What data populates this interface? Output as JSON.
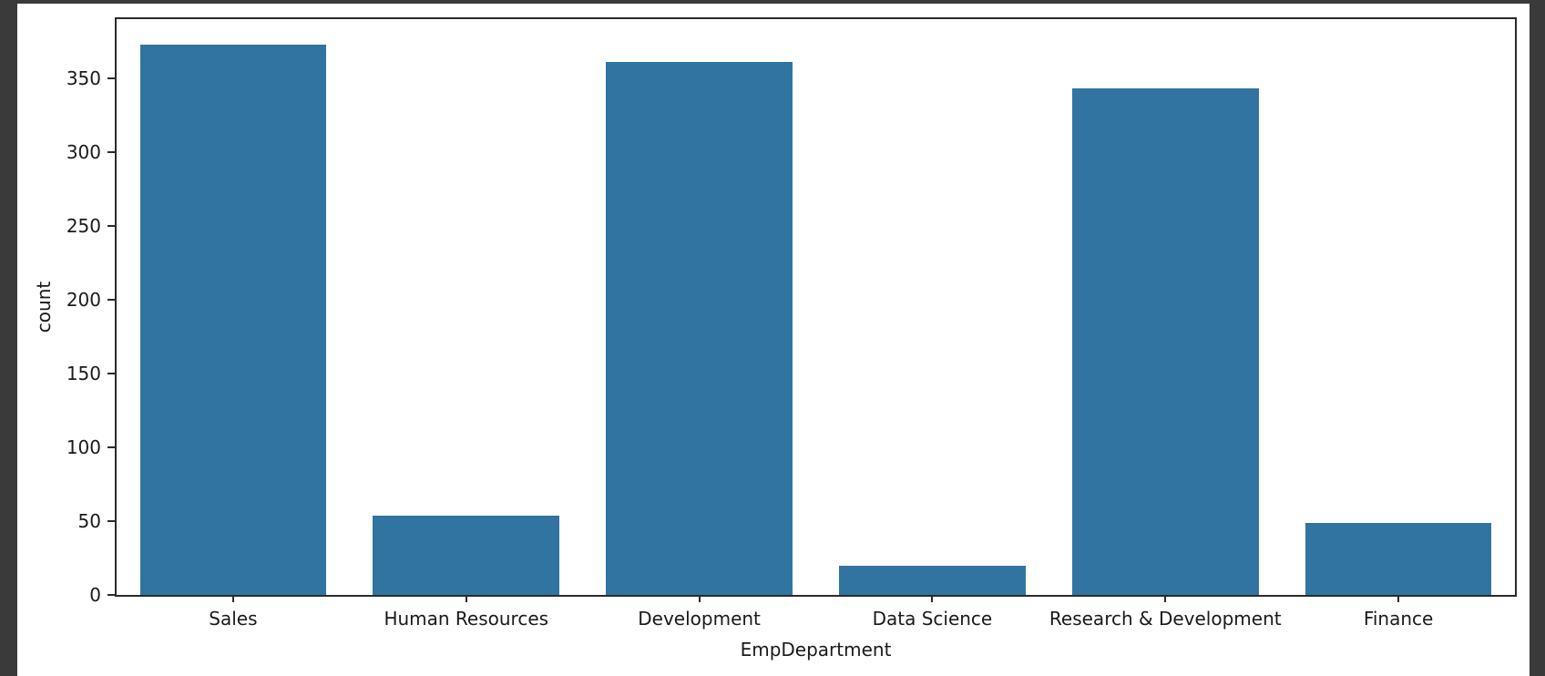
{
  "window": {
    "frame_color": "#3a3a3a",
    "canvas_background": "#ffffff"
  },
  "chart_data": {
    "type": "bar",
    "title": "",
    "categories": [
      "Sales",
      "Human Resources",
      "Development",
      "Data Science",
      "Research & Development",
      "Finance"
    ],
    "values": [
      373,
      54,
      361,
      20,
      343,
      49
    ],
    "xlabel": "EmpDepartment",
    "ylabel": "count",
    "ylim": [
      0,
      390
    ],
    "yticks": [
      0,
      50,
      100,
      150,
      200,
      250,
      300,
      350
    ],
    "bar_color": "#3274a1",
    "bar_relative_width": 0.8,
    "grid": false,
    "legend_position": "none",
    "spine_color": "#2b2b2b",
    "text_color": "#1a1a1a"
  }
}
